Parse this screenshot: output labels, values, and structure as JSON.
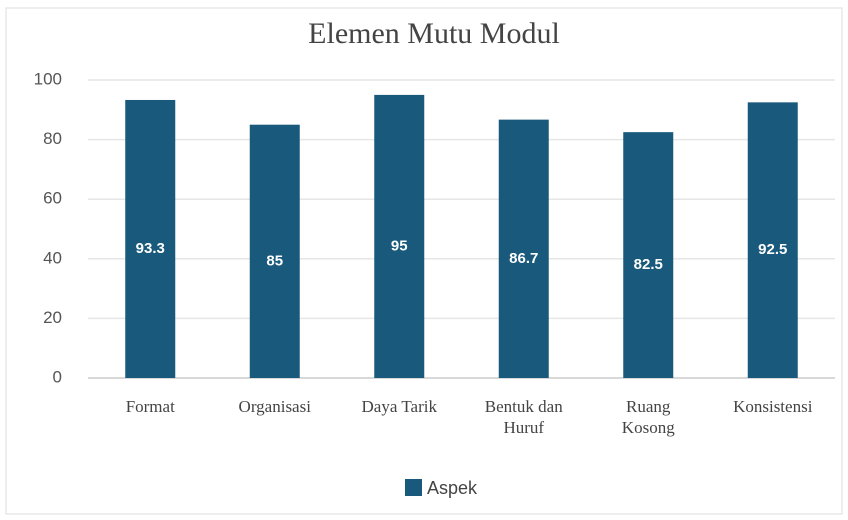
{
  "chart_data": {
    "type": "bar",
    "title": "Elemen Mutu Modul",
    "categories": [
      "Format",
      "Organisasi",
      "Daya Tarik",
      "Bentuk dan Huruf",
      "Ruang Kosong",
      "Konsistensi"
    ],
    "series": [
      {
        "name": "Aspek",
        "color": "#18597c",
        "values": [
          93.3,
          85,
          95,
          86.7,
          82.5,
          92.5
        ]
      }
    ],
    "ylim": [
      0,
      100
    ],
    "yticks": [
      0,
      20,
      40,
      60,
      80,
      100
    ],
    "grid": true,
    "legend": "bottom"
  }
}
